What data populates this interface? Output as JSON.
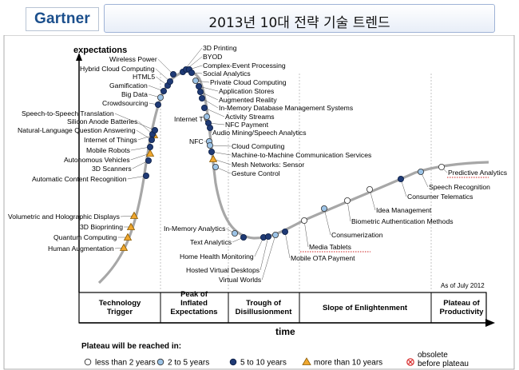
{
  "header": {
    "logo_text": "Gartner",
    "title": "2013년 10대 전략 기술 트렌드"
  },
  "axes": {
    "y_label": "expectations",
    "x_label": "time",
    "date_note": "As of July 2012"
  },
  "phases": [
    "Technology\nTrigger",
    "Peak of\nInflated\nExpectations",
    "Trough of\nDisillusionment",
    "Slope of Enlightenment",
    "Plateau of\nProductivity"
  ],
  "legend": {
    "title": "Plateau will be reached in:",
    "items": [
      {
        "symbol": "white-circle",
        "label": "less than 2 years",
        "color": "#ffffff"
      },
      {
        "symbol": "lightblue-circle",
        "label": "2 to 5 years",
        "color": "#9cc3e6"
      },
      {
        "symbol": "darkblue-circle",
        "label": "5 to 10 years",
        "color": "#1f3a75"
      },
      {
        "symbol": "orange-triangle",
        "label": "more than 10 years",
        "color": "#f0a830"
      },
      {
        "symbol": "red-x-circle",
        "label": "obsolete\nbefore plateau",
        "color": "#d62828"
      }
    ]
  },
  "technologies": [
    {
      "name": "Volumetric and Holographic Displays",
      "category": "10+"
    },
    {
      "name": "3D Bioprinting",
      "category": "10+"
    },
    {
      "name": "Quantum Computing",
      "category": "10+"
    },
    {
      "name": "Human Augmentation",
      "category": "10+"
    },
    {
      "name": "Automatic Content Recognition",
      "category": "5-10"
    },
    {
      "name": "3D Scanners",
      "category": "5-10"
    },
    {
      "name": "Autonomous Vehicles",
      "category": "10+"
    },
    {
      "name": "Mobile Robots",
      "category": "5-10"
    },
    {
      "name": "Internet of Things",
      "category": "10+"
    },
    {
      "name": "Natural-Language Question Answering",
      "category": "5-10"
    },
    {
      "name": "Silicon Anode Batteries",
      "category": "5-10"
    },
    {
      "name": "Speech-to-Speech Translation",
      "category": "5-10"
    },
    {
      "name": "Crowdsourcing",
      "category": "5-10"
    },
    {
      "name": "Big Data",
      "category": "2-5"
    },
    {
      "name": "Gamification",
      "category": "5-10"
    },
    {
      "name": "HTML5",
      "category": "5-10"
    },
    {
      "name": "Hybrid Cloud Computing",
      "category": "5-10"
    },
    {
      "name": "Wireless Power",
      "category": "5-10"
    },
    {
      "name": "3D Printing",
      "category": "5-10"
    },
    {
      "name": "BYOD",
      "category": "5-10"
    },
    {
      "name": "Complex-Event Processing",
      "category": "5-10"
    },
    {
      "name": "Social Analytics",
      "category": "5-10"
    },
    {
      "name": "Private Cloud Computing",
      "category": "2-5"
    },
    {
      "name": "Application Stores",
      "category": "5-10"
    },
    {
      "name": "Augmented Reality",
      "category": "5-10"
    },
    {
      "name": "In-Memory Database Management Systems",
      "category": "5-10"
    },
    {
      "name": "Activity Streams",
      "category": "5-10"
    },
    {
      "name": "Internet TV",
      "category": "2-5"
    },
    {
      "name": "NFC Payment",
      "category": "5-10"
    },
    {
      "name": "Audio Mining/Speech Analytics",
      "category": "5-10"
    },
    {
      "name": "NFC",
      "category": "2-5"
    },
    {
      "name": "Cloud Computing",
      "category": "2-5"
    },
    {
      "name": "Machine-to-Machine Communication Services",
      "category": "5-10"
    },
    {
      "name": "Mesh Networks: Sensor",
      "category": "10+"
    },
    {
      "name": "Gesture Control",
      "category": "2-5"
    },
    {
      "name": "In-Memory Analytics",
      "category": "2-5"
    },
    {
      "name": "Text Analytics",
      "category": "5-10"
    },
    {
      "name": "Home Health Monitoring",
      "category": "5-10"
    },
    {
      "name": "Hosted Virtual Desktops",
      "category": "5-10"
    },
    {
      "name": "Virtual Worlds",
      "category": "2-5"
    },
    {
      "name": "Mobile OTA Payment",
      "category": "5-10"
    },
    {
      "name": "Media Tablets",
      "category": "<2"
    },
    {
      "name": "Consumerization",
      "category": "2-5"
    },
    {
      "name": "Biometric Authentication Methods",
      "category": "<2"
    },
    {
      "name": "Idea Management",
      "category": "<2"
    },
    {
      "name": "Consumer Telematics",
      "category": "5-10"
    },
    {
      "name": "Speech Recognition",
      "category": "2-5"
    },
    {
      "name": "Predictive Analytics",
      "category": "<2"
    }
  ]
}
